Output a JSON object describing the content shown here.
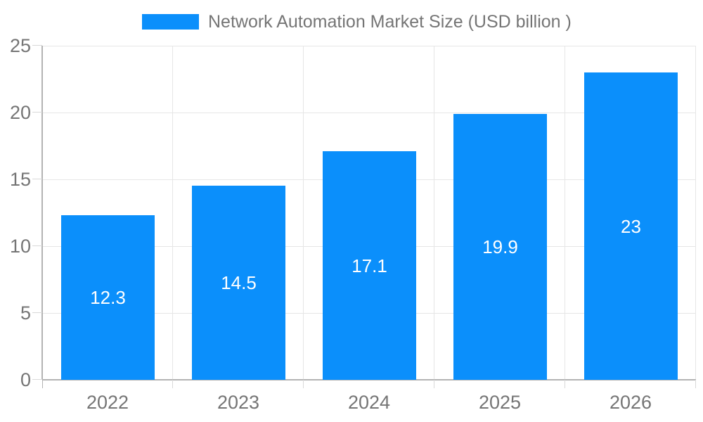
{
  "chart_data": {
    "type": "bar",
    "title": "Network Automation Market Size (USD billion )",
    "categories": [
      "2022",
      "2023",
      "2024",
      "2025",
      "2026"
    ],
    "values": [
      12.3,
      14.5,
      17.1,
      19.9,
      23
    ],
    "value_labels": [
      "12.3",
      "14.5",
      "17.1",
      "19.9",
      "23"
    ],
    "xlabel": "",
    "ylabel": "",
    "ylim": [
      0,
      25
    ],
    "ytick_step": 5,
    "ytick_labels": [
      "0",
      "5",
      "10",
      "15",
      "20",
      "25"
    ],
    "grid": true,
    "legend_position": "top",
    "colors": {
      "bar": "#0b8ffb",
      "grid": "#e6e6e6",
      "axis": "#b3b3b3",
      "tick": "#d9d9d9",
      "text": "#757575",
      "value_text": "#ffffff",
      "background": "#ffffff"
    }
  }
}
